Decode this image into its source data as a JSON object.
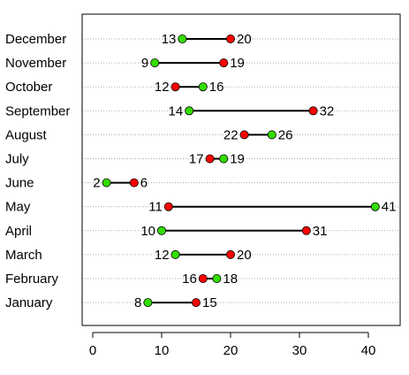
{
  "chart_data": {
    "type": "dumbbell",
    "title": "",
    "xlabel": "",
    "ylabel": "",
    "xlim": [
      -2,
      44
    ],
    "xticks": [
      0,
      10,
      20,
      30,
      40
    ],
    "grid": "horizontal-dotted",
    "legend": "none",
    "colors": {
      "green": "#33dd00",
      "red": "#ff0000",
      "line": "#000000",
      "grid": "#aaaaaa",
      "frame": "#000000"
    },
    "rows": [
      {
        "label": "December",
        "green": 13,
        "red": 20
      },
      {
        "label": "November",
        "green": 9,
        "red": 19
      },
      {
        "label": "October",
        "green": 16,
        "red": 12
      },
      {
        "label": "September",
        "green": 14,
        "red": 32
      },
      {
        "label": "August",
        "green": 26,
        "red": 22
      },
      {
        "label": "July",
        "green": 19,
        "red": 17
      },
      {
        "label": "June",
        "green": 2,
        "red": 6
      },
      {
        "label": "May",
        "green": 41,
        "red": 11
      },
      {
        "label": "April",
        "green": 10,
        "red": 31
      },
      {
        "label": "March",
        "green": 12,
        "red": 20
      },
      {
        "label": "February",
        "green": 18,
        "red": 16
      },
      {
        "label": "January",
        "green": 8,
        "red": 15
      }
    ]
  }
}
